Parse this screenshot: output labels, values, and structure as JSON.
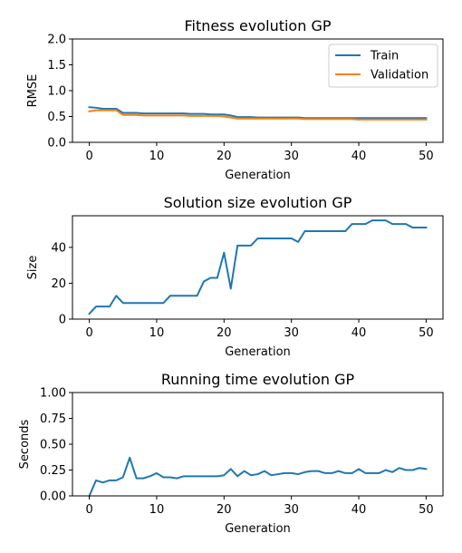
{
  "chart_data": [
    {
      "type": "line",
      "title": "Fitness evolution GP",
      "xlabel": "Generation",
      "ylabel": "RMSE",
      "xlim": [
        -2.5,
        52.5
      ],
      "ylim": [
        0,
        2.0
      ],
      "xticks": [
        "0",
        "10",
        "20",
        "30",
        "40",
        "50"
      ],
      "yticks": [
        "0.0",
        "0.5",
        "1.0",
        "1.5",
        "2.0"
      ],
      "ytick_values": [
        0,
        0.5,
        1.0,
        1.5,
        2.0
      ],
      "xtick_values": [
        0,
        10,
        20,
        30,
        40,
        50
      ],
      "legend": "top-right",
      "grid": false,
      "series": [
        {
          "name": "Train",
          "color": "#1f77b4",
          "values": [
            0.68,
            0.67,
            0.65,
            0.65,
            0.65,
            0.57,
            0.57,
            0.57,
            0.56,
            0.56,
            0.56,
            0.56,
            0.56,
            0.56,
            0.56,
            0.55,
            0.55,
            0.55,
            0.54,
            0.54,
            0.54,
            0.52,
            0.49,
            0.49,
            0.49,
            0.48,
            0.48,
            0.48,
            0.48,
            0.48,
            0.48,
            0.48,
            0.47,
            0.47,
            0.47,
            0.47,
            0.47,
            0.47,
            0.47,
            0.47,
            0.47,
            0.47,
            0.47,
            0.47,
            0.47,
            0.47,
            0.47,
            0.47,
            0.47,
            0.47,
            0.47
          ]
        },
        {
          "name": "Validation",
          "color": "#ff7f0e",
          "values": [
            0.6,
            0.62,
            0.62,
            0.62,
            0.62,
            0.53,
            0.53,
            0.53,
            0.52,
            0.52,
            0.52,
            0.52,
            0.52,
            0.52,
            0.52,
            0.51,
            0.51,
            0.51,
            0.51,
            0.51,
            0.5,
            0.48,
            0.46,
            0.46,
            0.46,
            0.46,
            0.46,
            0.46,
            0.46,
            0.46,
            0.46,
            0.46,
            0.45,
            0.45,
            0.45,
            0.45,
            0.45,
            0.45,
            0.45,
            0.45,
            0.44,
            0.44,
            0.44,
            0.44,
            0.44,
            0.44,
            0.44,
            0.44,
            0.44,
            0.44,
            0.44
          ]
        }
      ]
    },
    {
      "type": "line",
      "title": "Solution size evolution GP",
      "xlabel": "Generation",
      "ylabel": "Size",
      "xlim": [
        -2.5,
        52.5
      ],
      "ylim": [
        0,
        57.6
      ],
      "xticks": [
        "0",
        "10",
        "20",
        "30",
        "40",
        "50"
      ],
      "yticks": [
        "0",
        "20",
        "40"
      ],
      "ytick_values": [
        0,
        20,
        40
      ],
      "xtick_values": [
        0,
        10,
        20,
        30,
        40,
        50
      ],
      "grid": false,
      "series": [
        {
          "name": "",
          "color": "#1f77b4",
          "values": [
            3,
            7,
            7,
            7,
            13,
            9,
            9,
            9,
            9,
            9,
            9,
            9,
            13,
            13,
            13,
            13,
            13,
            21,
            23,
            23,
            37,
            17,
            41,
            41,
            41,
            45,
            45,
            45,
            45,
            45,
            45,
            43,
            49,
            49,
            49,
            49,
            49,
            49,
            49,
            53,
            53,
            53,
            55,
            55,
            55,
            53,
            53,
            53,
            51,
            51,
            51
          ]
        }
      ]
    },
    {
      "type": "line",
      "title": "Running time evolution GP",
      "xlabel": "Generation",
      "ylabel": "Seconds",
      "xlim": [
        -2.5,
        52.5
      ],
      "ylim": [
        0,
        1.0
      ],
      "xticks": [
        "0",
        "10",
        "20",
        "30",
        "40",
        "50"
      ],
      "yticks": [
        "0.00",
        "0.25",
        "0.50",
        "0.75",
        "1.00"
      ],
      "ytick_values": [
        0,
        0.25,
        0.5,
        0.75,
        1.0
      ],
      "xtick_values": [
        0,
        10,
        20,
        30,
        40,
        50
      ],
      "grid": false,
      "series": [
        {
          "name": "",
          "color": "#1f77b4",
          "values": [
            0.0,
            0.15,
            0.13,
            0.15,
            0.15,
            0.18,
            0.37,
            0.17,
            0.17,
            0.19,
            0.22,
            0.18,
            0.18,
            0.17,
            0.19,
            0.19,
            0.19,
            0.19,
            0.19,
            0.19,
            0.2,
            0.26,
            0.19,
            0.24,
            0.2,
            0.21,
            0.24,
            0.2,
            0.21,
            0.22,
            0.22,
            0.21,
            0.23,
            0.24,
            0.24,
            0.22,
            0.22,
            0.24,
            0.22,
            0.22,
            0.26,
            0.22,
            0.22,
            0.22,
            0.25,
            0.23,
            0.27,
            0.25,
            0.25,
            0.27,
            0.26
          ]
        }
      ]
    }
  ]
}
